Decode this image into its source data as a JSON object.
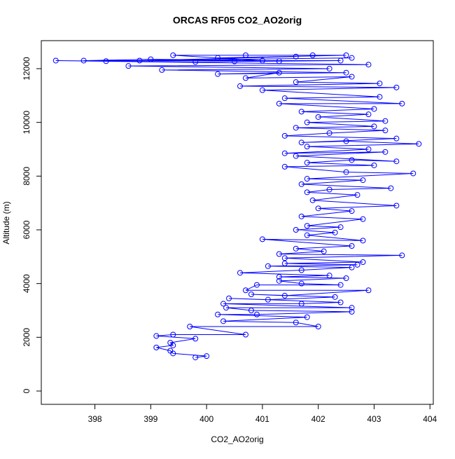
{
  "chart_data": {
    "type": "scatter",
    "title": "ORCAS RF05 CO2_AO2orig",
    "xlabel": "CO2_AO2orig",
    "ylabel": "Altitude (m)",
    "color": "#0000ff",
    "lines": true,
    "x": [
      399.8,
      400,
      399.4,
      399.35,
      399.1,
      399.4,
      399.35,
      399.8,
      399.1,
      399.4,
      400.7,
      399.7,
      402,
      401.6,
      400.3,
      401.8,
      400.2,
      400.9,
      402.6,
      400.8,
      400.35,
      402.6,
      400.3,
      401.7,
      402.4,
      400.4,
      401.1,
      402.3,
      400.8,
      401.4,
      402.9,
      400.7,
      400.9,
      402.4,
      401.7,
      401.3,
      402.5,
      401.3,
      402.2,
      400.6,
      401.7,
      402.6,
      401.1,
      402.7,
      401.4,
      402.8,
      401.4,
      403.5,
      401.3,
      402.1,
      401.6,
      402.6,
      401,
      402.8,
      401.8,
      402.3,
      401.6,
      402.4,
      401.8,
      402.8,
      401.7,
      402.6,
      402,
      403.4,
      401.9,
      402.7,
      401.8,
      402.2,
      403.3,
      401.7,
      402.8,
      401.8,
      403.7,
      402.5,
      401.4,
      403,
      401.8,
      402.6,
      403.4,
      401.6,
      403.2,
      401.4,
      402.9,
      401.8,
      403.8,
      402.5,
      401.7,
      403.4,
      401.4,
      402.2,
      403.2,
      401.6,
      403,
      401.8,
      403.2,
      402,
      402.9,
      401.7,
      403,
      401.3,
      403.5,
      401.4,
      403.1,
      401,
      403.4,
      400.6,
      403.1,
      401.6,
      402.6,
      400.7,
      401.3,
      400.2,
      402.5,
      399.2,
      402.2,
      398.6,
      402.9,
      397.3,
      398.2,
      399.8,
      400.5,
      401.3,
      402.4,
      397.8,
      399,
      401,
      399.4,
      400.7,
      401.9,
      402.5,
      400.2,
      401.6,
      398.8,
      402.6
    ],
    "values": [
      1250,
      1300,
      1400,
      1500,
      1620,
      1700,
      1800,
      1950,
      2050,
      2100,
      2100,
      2400,
      2400,
      2550,
      2600,
      2750,
      2850,
      2850,
      2950,
      3000,
      3100,
      3100,
      3250,
      3250,
      3300,
      3450,
      3400,
      3500,
      3600,
      3550,
      3750,
      3750,
      3950,
      3950,
      4000,
      4100,
      4200,
      4250,
      4300,
      4400,
      4500,
      4600,
      4650,
      4700,
      4750,
      4800,
      4950,
      5050,
      5100,
      5200,
      5300,
      5400,
      5650,
      5600,
      5800,
      5900,
      6000,
      6100,
      6150,
      6400,
      6500,
      6700,
      6800,
      6900,
      7100,
      7300,
      7400,
      7500,
      7550,
      7700,
      7850,
      7900,
      8100,
      8150,
      8350,
      8400,
      8500,
      8600,
      8550,
      8750,
      8900,
      8850,
      9000,
      9100,
      9200,
      9300,
      9250,
      9400,
      9500,
      9600,
      9700,
      9800,
      9850,
      10000,
      10050,
      10200,
      10300,
      10400,
      10500,
      10700,
      10700,
      10900,
      10950,
      11200,
      11300,
      11350,
      11450,
      11500,
      11700,
      11650,
      11850,
      11800,
      11850,
      11950,
      12000,
      12100,
      12150,
      12300,
      12280,
      12250,
      12270,
      12280,
      12300,
      12300,
      12350,
      12300,
      12500,
      12500,
      12500,
      12500,
      12400,
      12450,
      12300,
      12400
    ],
    "xlim": [
      397.04,
      404.06
    ],
    "ylim": [
      -496,
      13043
    ],
    "xticks": [
      398,
      399,
      400,
      401,
      402,
      403,
      404
    ],
    "yticks": [
      0,
      2000,
      4000,
      6000,
      8000,
      10000,
      12000
    ]
  }
}
